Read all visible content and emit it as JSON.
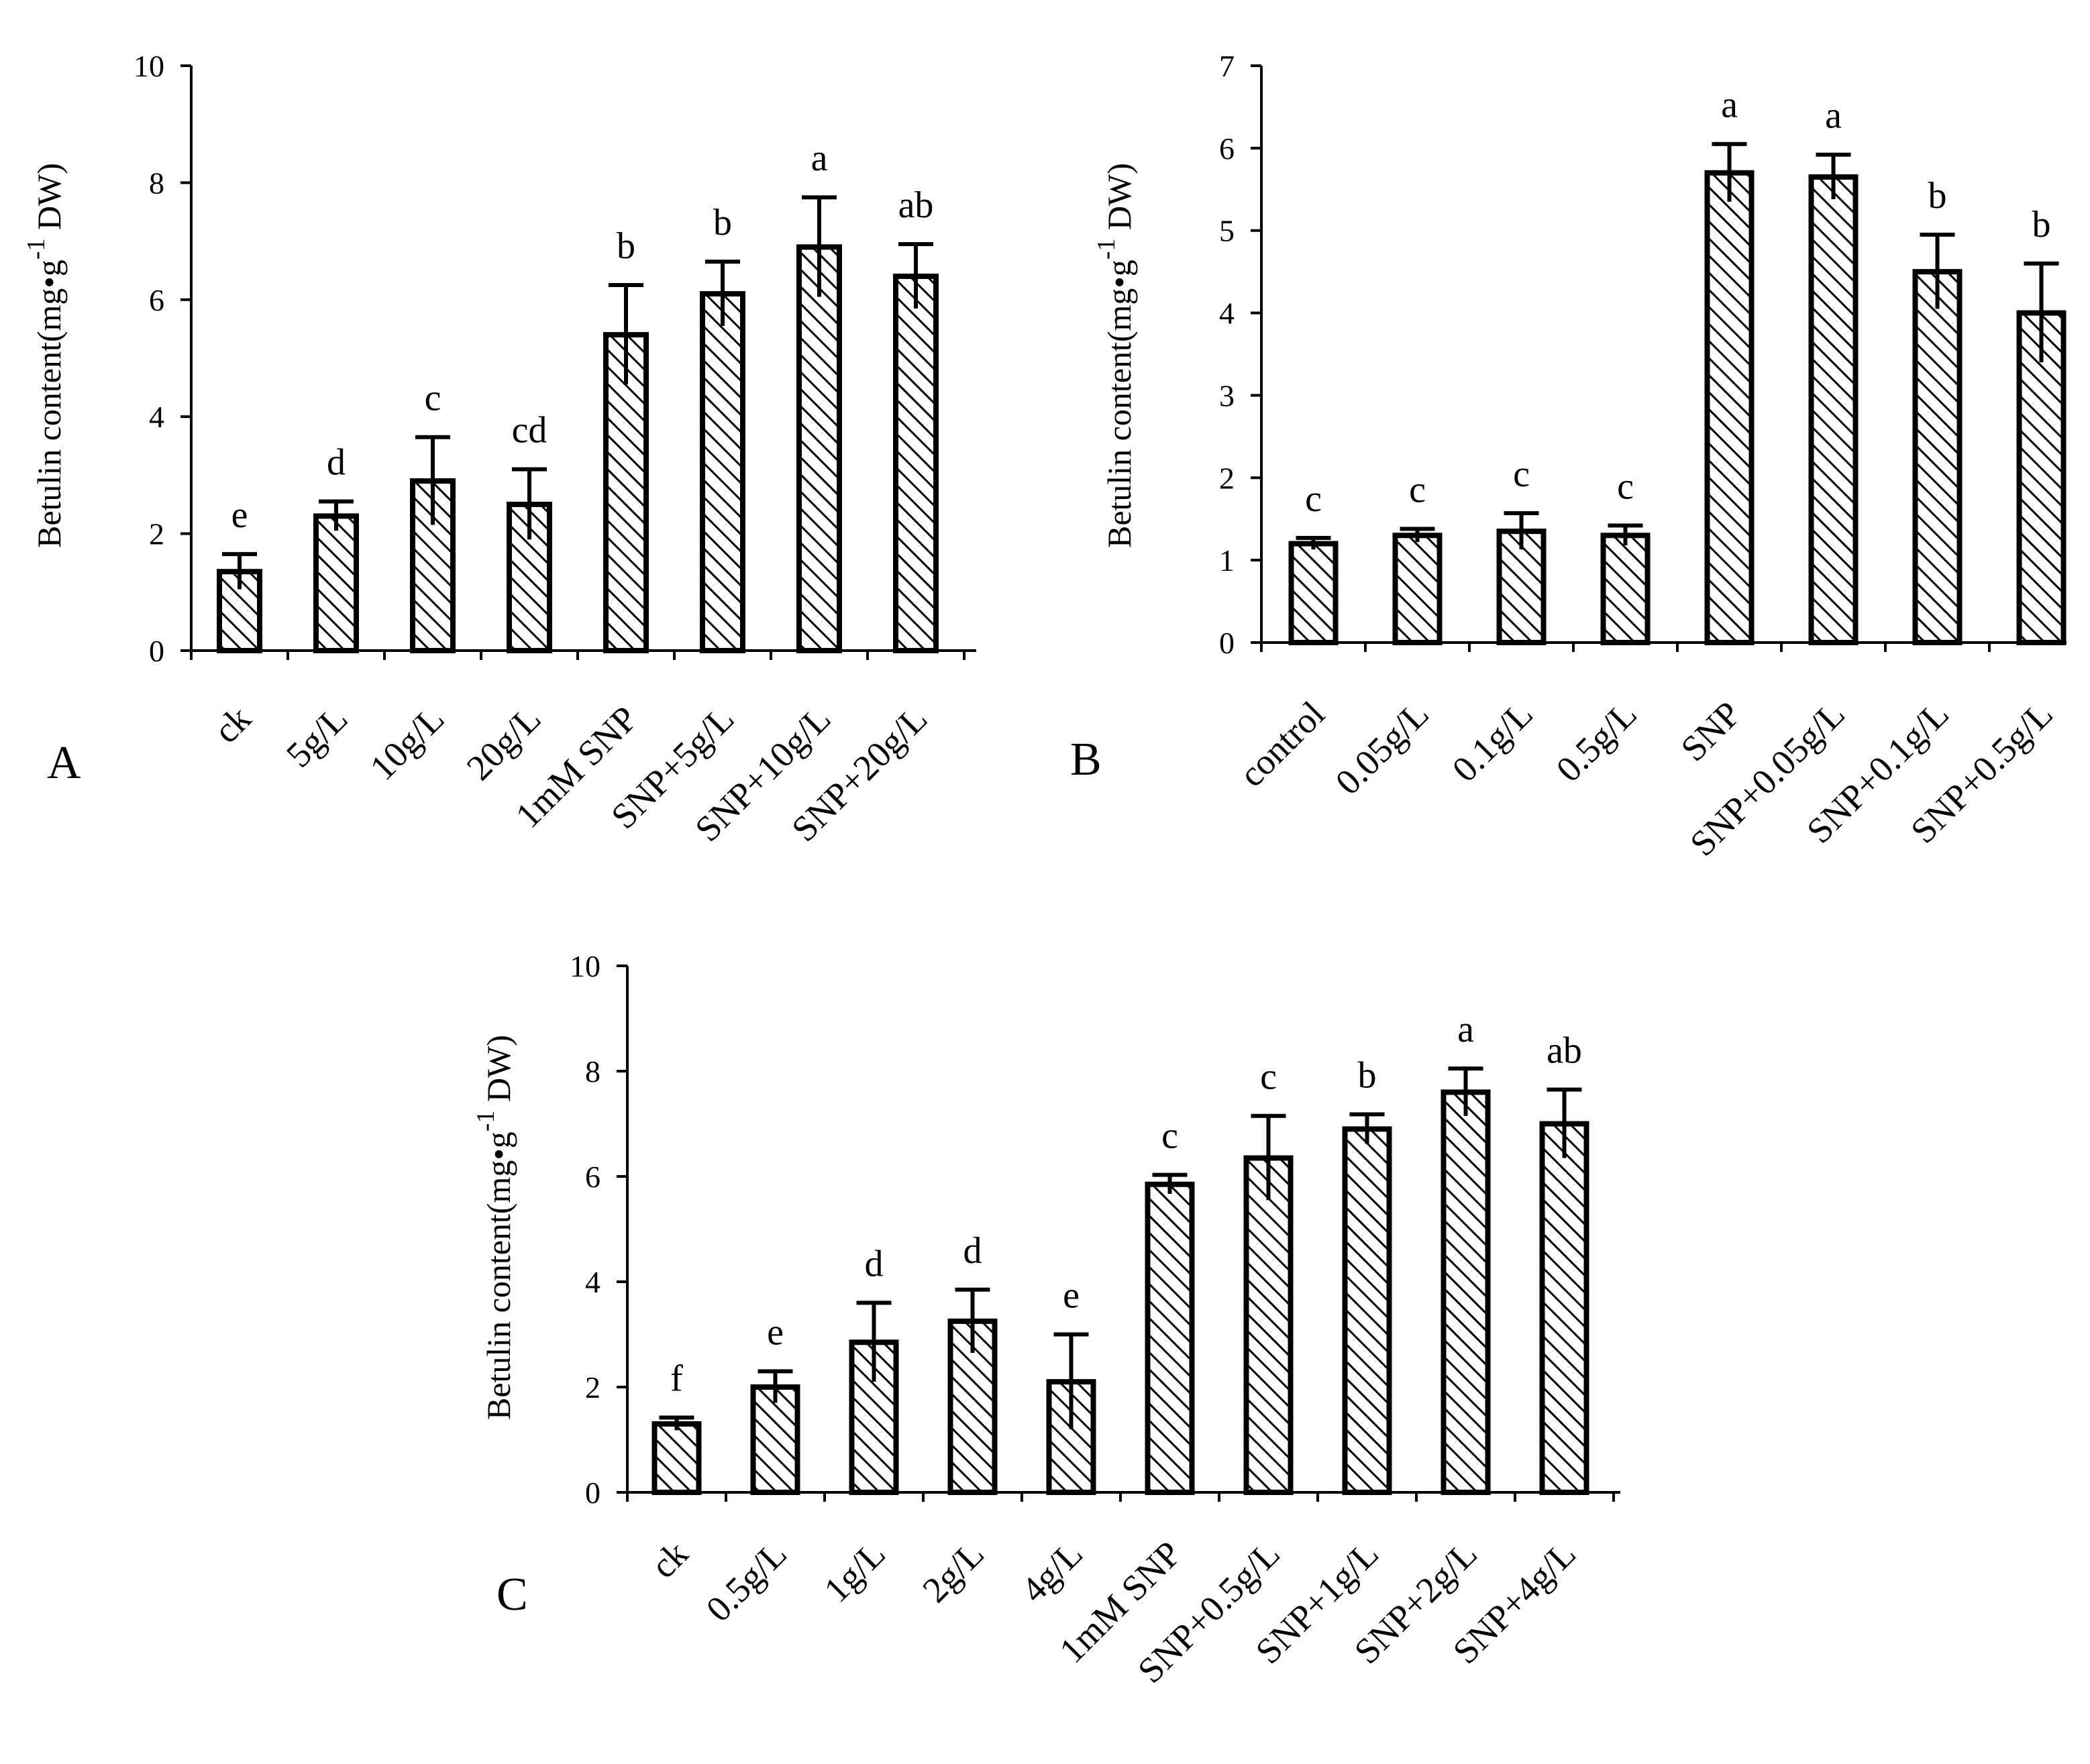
{
  "figure": {
    "colors": {
      "bar_fill": "#ffffff",
      "hatch": "#000000",
      "axis": "#000000"
    }
  },
  "chart_data": [
    {
      "panel": "A",
      "type": "bar",
      "ylabel_main": "Betulin content(mg•g",
      "ylabel_sup": "-1",
      "ylabel_tail": " DW)",
      "ylim": [
        0,
        10
      ],
      "yticks": [
        0,
        2,
        4,
        6,
        8,
        10
      ],
      "categories": [
        "ck",
        "5g/L",
        "10g/L",
        "20g/L",
        "1mM SNP",
        "SNP+5g/L",
        "SNP+10g/L",
        "SNP+20g/L"
      ],
      "values": [
        1.35,
        2.3,
        2.9,
        2.5,
        5.4,
        6.1,
        6.9,
        6.4
      ],
      "errors": [
        0.3,
        0.25,
        0.75,
        0.6,
        0.85,
        0.55,
        0.85,
        0.55
      ],
      "letters": [
        "e",
        "d",
        "c",
        "cd",
        "b",
        "b",
        "a",
        "ab"
      ]
    },
    {
      "panel": "B",
      "type": "bar",
      "ylabel_main": "Betulin content(mg•g",
      "ylabel_sup": "-1",
      "ylabel_tail": " DW)",
      "ylim": [
        0,
        7
      ],
      "yticks": [
        0,
        1,
        2,
        3,
        4,
        5,
        6,
        7
      ],
      "categories": [
        "control",
        "0.05g/L",
        "0.1g/L",
        "0.5g/L",
        "SNP",
        "SNP+0.05g/L",
        "SNP+0.1g/L",
        "SNP+0.5g/L"
      ],
      "values": [
        1.2,
        1.3,
        1.35,
        1.3,
        5.7,
        5.65,
        4.5,
        4.0
      ],
      "errors": [
        0.07,
        0.08,
        0.22,
        0.12,
        0.35,
        0.27,
        0.45,
        0.6
      ],
      "letters": [
        "c",
        "c",
        "c",
        "c",
        "a",
        "a",
        "b",
        "b"
      ]
    },
    {
      "panel": "C",
      "type": "bar",
      "ylabel_main": "Betulin content(mg•g",
      "ylabel_sup": "-1",
      "ylabel_tail": " DW)",
      "ylim": [
        0,
        10
      ],
      "yticks": [
        0,
        2,
        4,
        6,
        8,
        10
      ],
      "categories": [
        "ck",
        "0.5g/L",
        "1g/L",
        "2g/L",
        "4g/L",
        "1mM SNP",
        "SNP+0.5g/L",
        "SNP+1g/L",
        "SNP+2g/L",
        "SNP+4g/L"
      ],
      "values": [
        1.3,
        2.0,
        2.85,
        3.25,
        2.1,
        5.85,
        6.35,
        6.9,
        7.6,
        7.0
      ],
      "errors": [
        0.12,
        0.3,
        0.75,
        0.6,
        0.9,
        0.18,
        0.8,
        0.28,
        0.45,
        0.65
      ],
      "letters": [
        "f",
        "e",
        "d",
        "d",
        "e",
        "c",
        "c",
        "b",
        "a",
        "ab"
      ]
    }
  ]
}
